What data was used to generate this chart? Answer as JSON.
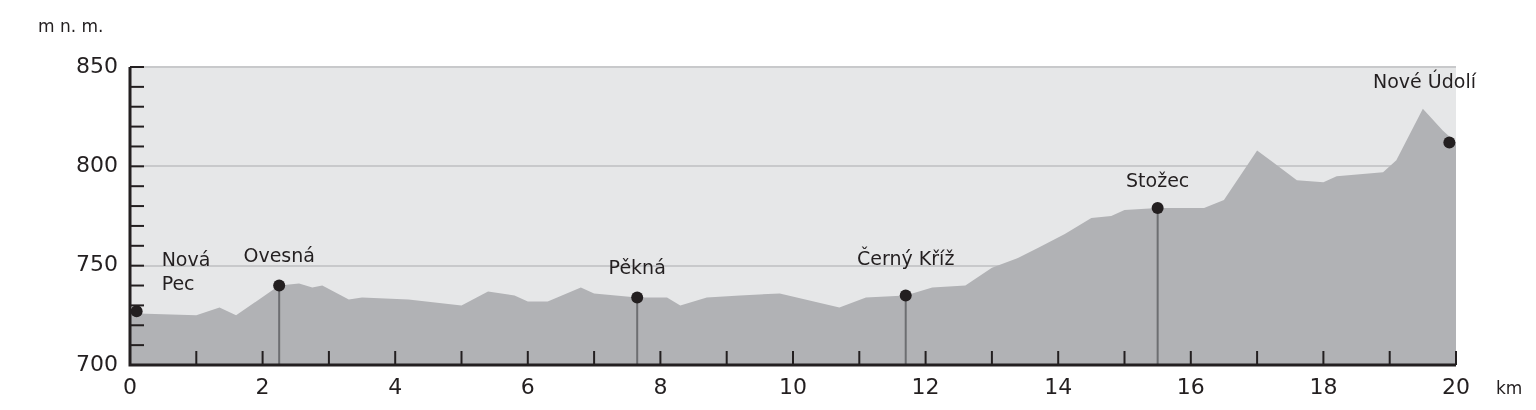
{
  "chart_data": {
    "type": "area",
    "xlabel": "km",
    "ylabel": "m n. m.",
    "xlim": [
      0,
      20
    ],
    "ylim": [
      700,
      850
    ],
    "xticks": [
      0,
      {
        "value": 1,
        "label": null
      },
      2,
      {
        "value": 3,
        "label": null
      },
      4,
      {
        "value": 5,
        "label": null
      },
      6,
      {
        "value": 7,
        "label": null
      },
      8,
      {
        "value": 9,
        "label": null
      },
      10,
      {
        "value": 11,
        "label": null
      },
      12,
      {
        "value": 13,
        "label": null
      },
      14,
      {
        "value": 15,
        "label": null
      },
      16,
      {
        "value": 17,
        "label": null
      },
      18,
      {
        "value": 19,
        "label": null
      },
      20
    ],
    "yticks": [
      700,
      {
        "value": 710,
        "label": null
      },
      {
        "value": 720,
        "label": null
      },
      {
        "value": 730,
        "label": null
      },
      {
        "value": 740,
        "label": null
      },
      750,
      {
        "value": 760,
        "label": null
      },
      {
        "value": 770,
        "label": null
      },
      {
        "value": 780,
        "label": null
      },
      {
        "value": 790,
        "label": null
      },
      800,
      {
        "value": 810,
        "label": null
      },
      {
        "value": 820,
        "label": null
      },
      {
        "value": 830,
        "label": null
      },
      {
        "value": 840,
        "label": null
      },
      850
    ],
    "grid": "y",
    "legend": false,
    "series": [
      {
        "color": "#b1b2b5",
        "x": [
          0,
          1.0,
          1.35,
          1.6,
          2.25,
          2.55,
          2.75,
          2.9,
          3.3,
          3.5,
          4.2,
          5.0,
          5.4,
          5.8,
          6.0,
          6.3,
          6.8,
          7.0,
          7.65,
          8.1,
          8.3,
          8.7,
          9.2,
          9.8,
          10.7,
          11.1,
          11.7,
          12.1,
          12.6,
          13.0,
          13.4,
          13.7,
          14.1,
          14.5,
          14.8,
          15.0,
          15.5,
          16.2,
          16.5,
          17.0,
          17.6,
          18.0,
          18.2,
          18.9,
          19.1,
          19.5,
          19.8,
          20
        ],
        "values": [
          726,
          725,
          729,
          725,
          740,
          741,
          739,
          740,
          733,
          734,
          733,
          730,
          737,
          735,
          732,
          732,
          739,
          736,
          734,
          734,
          730,
          734,
          735,
          736,
          729,
          734,
          735,
          739,
          740,
          749,
          754,
          759,
          766,
          774,
          775,
          778,
          779,
          779,
          783,
          808,
          793,
          792,
          795,
          797,
          803,
          829,
          818,
          812
        ]
      },
      {
        "type": "scatter",
        "color": "#231f20",
        "marker": "circle",
        "x": [
          0.1,
          19.9
        ],
        "values": [
          727,
          812
        ]
      },
      {
        "type": "lollipop",
        "color": "#231f20",
        "marker": "circle",
        "x": [
          2.25,
          7.65,
          11.7,
          15.5
        ],
        "values": [
          740,
          734,
          735,
          779
        ]
      }
    ],
    "annotations": [
      {
        "text": "Nová\nPec",
        "x": 0.1,
        "y": 727
      },
      {
        "text": "Ovesná",
        "x": 2.25,
        "y": 740
      },
      {
        "text": "Pěkná",
        "x": 7.65,
        "y": 734
      },
      {
        "text": "Černý Kříž",
        "x": 11.7,
        "y": 735
      },
      {
        "text": "Stožec",
        "x": 15.5,
        "y": 779
      },
      {
        "text": "Nové Údolí",
        "x": 19.9,
        "y": 812
      }
    ]
  }
}
